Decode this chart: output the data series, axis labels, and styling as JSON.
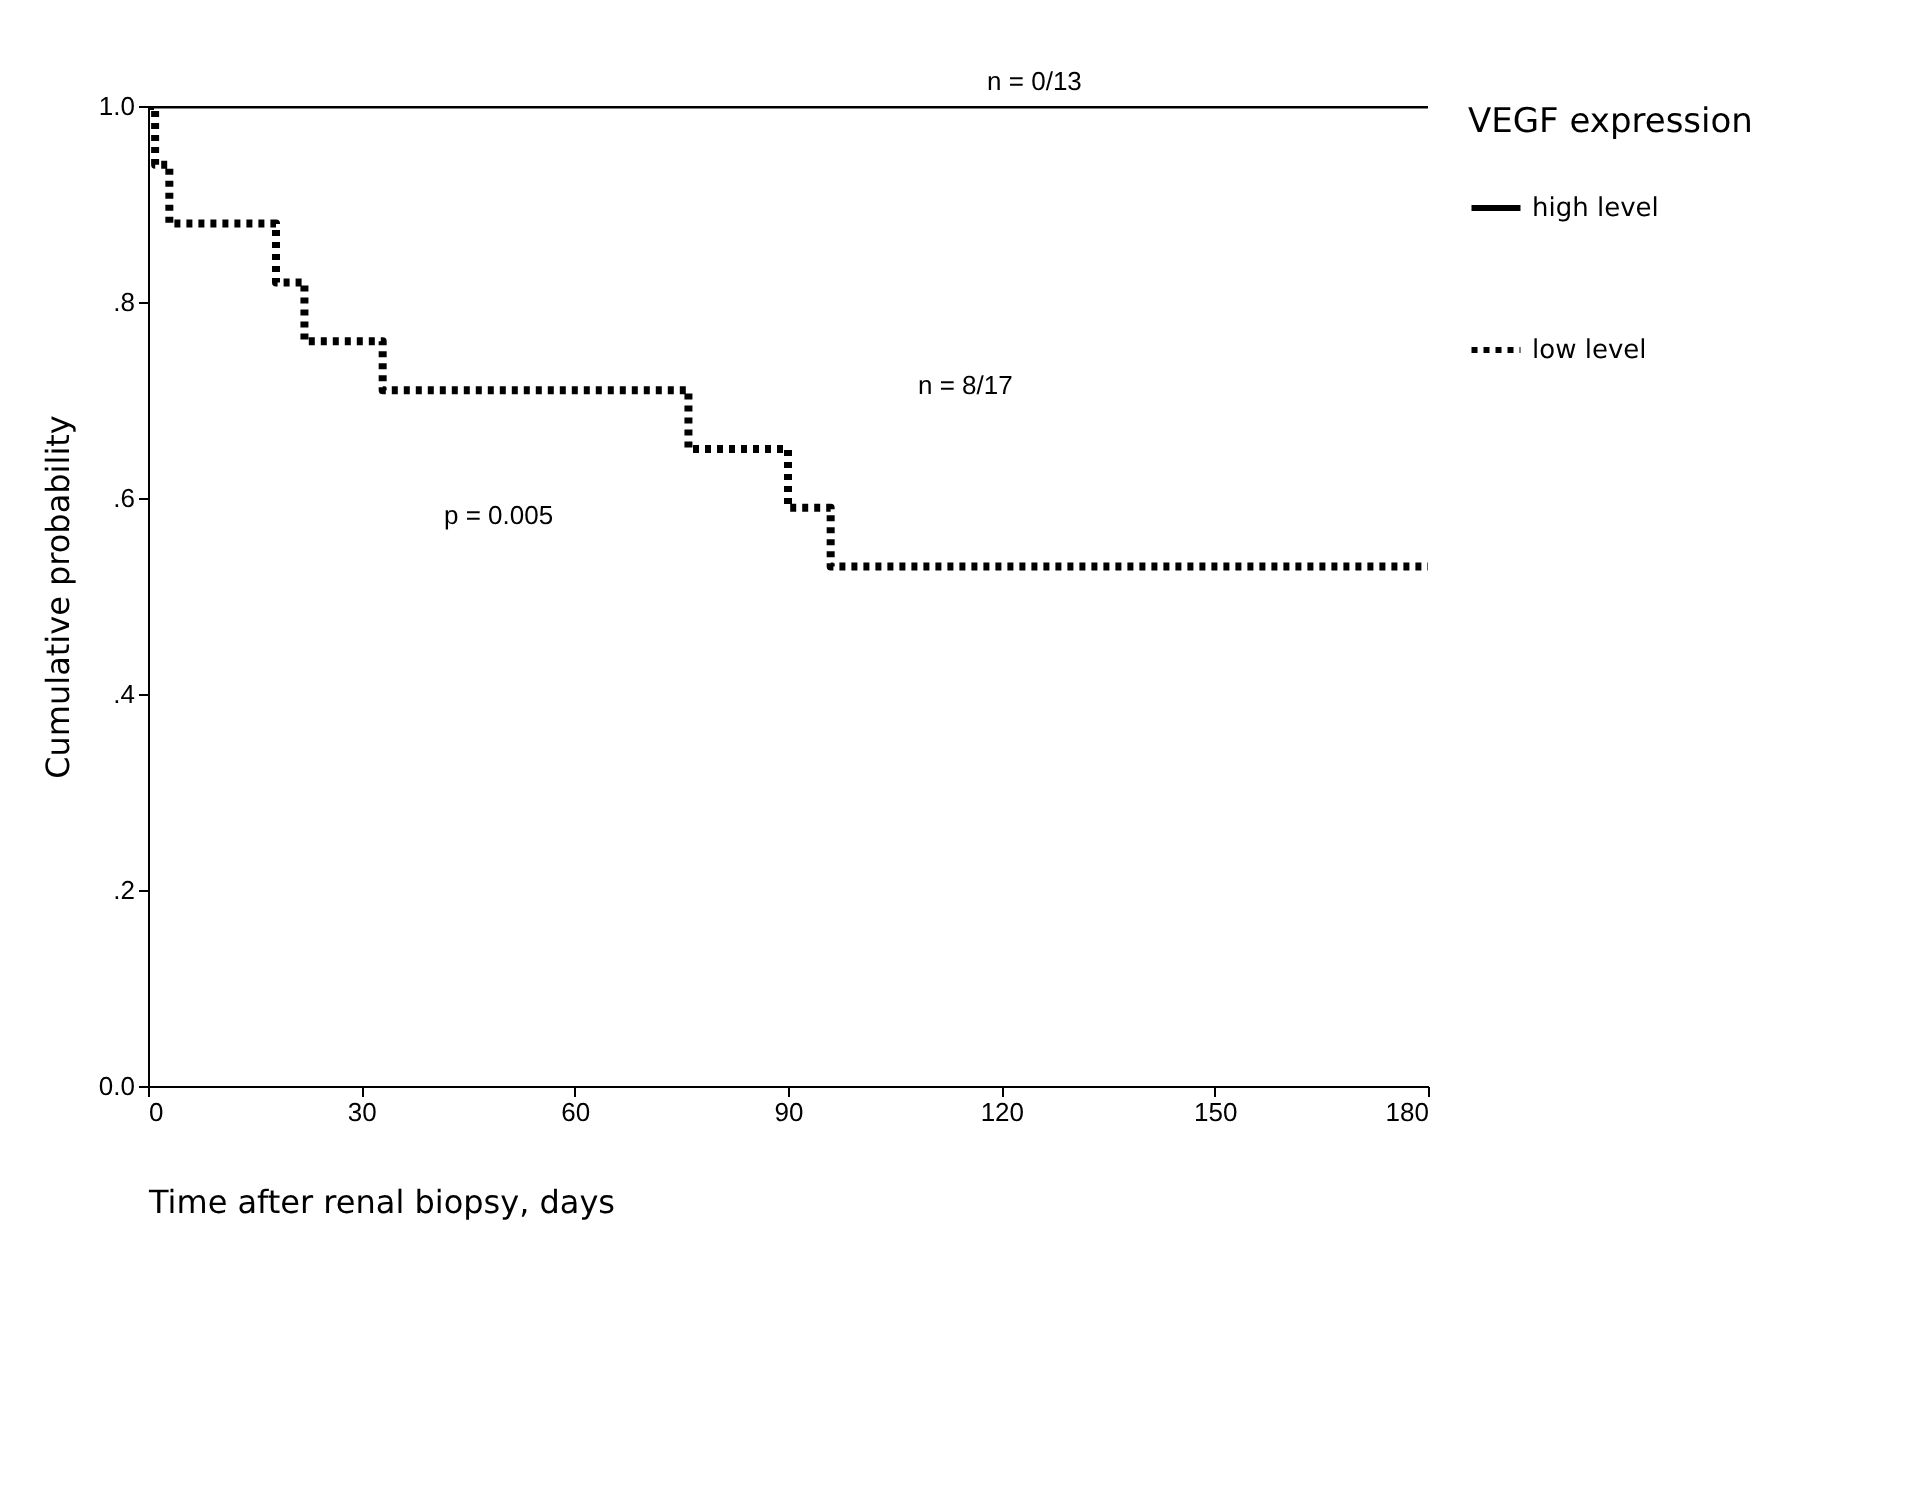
{
  "chart_data": {
    "type": "step",
    "xlabel": "Time after renal biopsy, days",
    "ylabel": "Cumulative probability",
    "legend_title": "VEGF expression",
    "legend": "right",
    "grid": false,
    "xlim": [
      0,
      180
    ],
    "xticks": [
      0,
      30,
      60,
      90,
      120,
      150,
      180
    ],
    "ylim": [
      0,
      1
    ],
    "yticks": [
      {
        "value": 0,
        "label": "0.0"
      },
      {
        "value": 0.2,
        "label": ".2"
      },
      {
        "value": 0.4,
        "label": ".4"
      },
      {
        "value": 0.6,
        "label": ".6"
      },
      {
        "value": 0.8,
        "label": ".8"
      },
      {
        "value": 1,
        "label": "1.0"
      }
    ],
    "series": [
      {
        "name": "high level",
        "color": "#000000",
        "line_style": "solid",
        "x": [
          0,
          180
        ],
        "values": [
          1,
          1
        ]
      },
      {
        "name": "low level",
        "color": "#000000",
        "line_style": "dotted",
        "x": [
          0,
          1,
          3,
          18,
          22,
          33,
          76,
          90,
          96,
          180
        ],
        "values": [
          1,
          0.94,
          0.88,
          0.82,
          0.76,
          0.71,
          0.65,
          0.59,
          0.53,
          0.53
        ]
      }
    ],
    "annotations": [
      {
        "text": "n = 0/13",
        "x": 118,
        "y": 1
      },
      "n = 8/17",
      "p = 0.005"
    ]
  }
}
